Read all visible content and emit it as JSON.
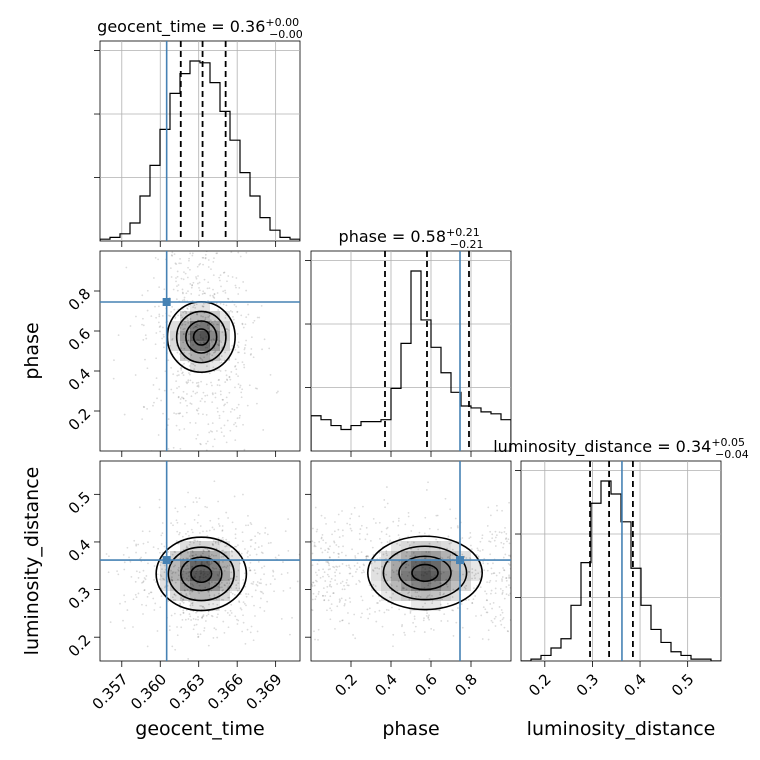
{
  "chart_data": {
    "type": "corner",
    "parameters": [
      "geocent_time",
      "phase",
      "luminosity_distance"
    ],
    "truth": {
      "geocent_time": 0.3605,
      "phase": 0.745,
      "luminosity_distance": 0.362
    },
    "summary": {
      "geocent_time": {
        "median": 0.3633,
        "lo": 0.3616,
        "hi": 0.3651
      },
      "phase": {
        "median": 0.58,
        "lo": 0.37,
        "hi": 0.79
      },
      "luminosity_distance": {
        "median": 0.335,
        "lo": 0.295,
        "hi": 0.385
      }
    },
    "titles": {
      "geocent_time": {
        "prefix": "geocent_time = 0.36",
        "plus": "+0.00",
        "minus": "−0.00"
      },
      "phase": {
        "prefix": "phase = 0.58",
        "plus": "+0.21",
        "minus": "−0.21"
      },
      "luminosity_distance": {
        "prefix": "luminosity_distance = 0.34",
        "plus": "+0.05",
        "minus": "−0.04"
      }
    },
    "axis_labels": {
      "x": [
        "geocent_time",
        "phase",
        "luminosity_distance"
      ],
      "y": [
        "phase",
        "luminosity_distance"
      ]
    },
    "ranges": {
      "geocent_time": [
        0.3553,
        0.3709
      ],
      "phase": [
        0.0,
        1.0
      ],
      "luminosity_distance": [
        0.15,
        0.57
      ]
    },
    "ticks": {
      "geocent_time": [
        0.357,
        0.36,
        0.363,
        0.366,
        0.369
      ],
      "geocent_time_labels": [
        "0.357",
        "0.360",
        "0.363",
        "0.366",
        "0.369"
      ],
      "phase_x": [
        0.2,
        0.4,
        0.6,
        0.8
      ],
      "phase_x_labels": [
        "0.2",
        "0.4",
        "0.6",
        "0.8"
      ],
      "phase_y": [
        0.2,
        0.4,
        0.6,
        0.8
      ],
      "phase_y_labels": [
        "0.2",
        "0.4",
        "0.6",
        "0.8"
      ],
      "luminosity_distance": [
        0.2,
        0.3,
        0.4,
        0.5
      ],
      "luminosity_distance_labels": [
        "0.2",
        "0.3",
        "0.4",
        "0.5"
      ]
    },
    "histograms": {
      "geocent_time": {
        "edges": [
          0.3553,
          0.35608,
          0.35686,
          0.35764,
          0.35842,
          0.3592,
          0.35998,
          0.36076,
          0.36154,
          0.36232,
          0.3631,
          0.36388,
          0.36466,
          0.36544,
          0.36622,
          0.367,
          0.36778,
          0.36856,
          0.36934,
          0.37012,
          0.3709
        ],
        "counts": [
          0.01,
          0.02,
          0.04,
          0.1,
          0.25,
          0.42,
          0.62,
          0.82,
          0.93,
          1.0,
          0.99,
          0.88,
          0.72,
          0.56,
          0.38,
          0.25,
          0.13,
          0.06,
          0.02,
          0.01
        ]
      },
      "phase": {
        "edges": [
          0.0,
          0.05,
          0.1,
          0.15,
          0.2,
          0.25,
          0.3,
          0.35,
          0.4,
          0.45,
          0.5,
          0.55,
          0.6,
          0.65,
          0.7,
          0.75,
          0.8,
          0.85,
          0.9,
          0.95,
          1.0
        ],
        "counts": [
          0.18,
          0.16,
          0.13,
          0.11,
          0.13,
          0.15,
          0.15,
          0.16,
          0.32,
          0.55,
          0.92,
          0.67,
          0.53,
          0.4,
          0.3,
          0.23,
          0.22,
          0.2,
          0.19,
          0.16
        ]
      },
      "luminosity_distance": {
        "edges": [
          0.15,
          0.171,
          0.192,
          0.213,
          0.234,
          0.255,
          0.276,
          0.297,
          0.318,
          0.339,
          0.36,
          0.381,
          0.402,
          0.423,
          0.444,
          0.465,
          0.486,
          0.507,
          0.528,
          0.549,
          0.57
        ],
        "counts": [
          0.0,
          0.01,
          0.03,
          0.07,
          0.12,
          0.3,
          0.53,
          0.85,
          0.97,
          0.9,
          0.75,
          0.5,
          0.3,
          0.17,
          0.1,
          0.05,
          0.03,
          0.01,
          0.01,
          0.0
        ]
      }
    },
    "density_2d": [
      {
        "x": "geocent_time",
        "y": "phase",
        "cx": 0.3632,
        "cy": 0.57,
        "sx": 0.0012,
        "sy": 0.08
      },
      {
        "x": "geocent_time",
        "y": "luminosity_distance",
        "cx": 0.3632,
        "cy": 0.333,
        "sx": 0.0016,
        "sy": 0.035
      },
      {
        "x": "phase",
        "y": "luminosity_distance",
        "cx": 0.57,
        "cy": 0.335,
        "sx": 0.13,
        "sy": 0.035
      }
    ]
  }
}
